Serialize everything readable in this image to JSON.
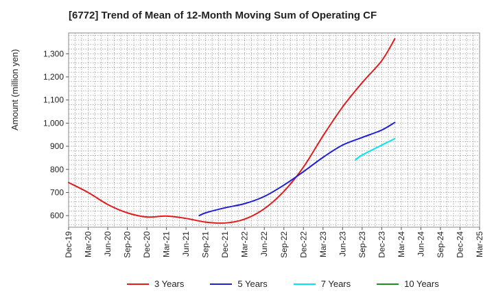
{
  "chart_data": {
    "type": "line",
    "title": "[6772]  Trend of Mean of 12-Month Moving Sum of Operating CF",
    "xlabel": "",
    "ylabel": "Amount (million yen)",
    "ylim": [
      550,
      1390
    ],
    "yticks": [
      600,
      700,
      800,
      900,
      1000,
      1100,
      1200,
      1300
    ],
    "ytick_labels": [
      "600",
      "700",
      "800",
      "900",
      "1,000",
      "1,100",
      "1,200",
      "1,300"
    ],
    "categories": [
      "Dec-19",
      "Mar-20",
      "Jun-20",
      "Sep-20",
      "Dec-20",
      "Mar-21",
      "Jun-21",
      "Sep-21",
      "Dec-21",
      "Mar-22",
      "Jun-22",
      "Sep-22",
      "Dec-22",
      "Mar-23",
      "Jun-23",
      "Sep-23",
      "Dec-23",
      "Mar-24",
      "Jun-24",
      "Sep-24",
      "Dec-24",
      "Mar-25"
    ],
    "grid": true,
    "legend_position": "bottom",
    "series": [
      {
        "name": "3 Years",
        "color": "#e31a1c",
        "points": [
          [
            0,
            743
          ],
          [
            1,
            700
          ],
          [
            2,
            648
          ],
          [
            3,
            612
          ],
          [
            4,
            594
          ],
          [
            5,
            598
          ],
          [
            6,
            588
          ],
          [
            7,
            572
          ],
          [
            8,
            568
          ],
          [
            9,
            585
          ],
          [
            10,
            630
          ],
          [
            11,
            705
          ],
          [
            12,
            810
          ],
          [
            13,
            945
          ],
          [
            14,
            1070
          ],
          [
            15,
            1175
          ],
          [
            16,
            1270
          ],
          [
            16.67,
            1365
          ]
        ]
      },
      {
        "name": "5 Years",
        "color": "#1f1fd6",
        "points": [
          [
            6.67,
            600
          ],
          [
            7,
            612
          ],
          [
            8,
            634
          ],
          [
            9,
            652
          ],
          [
            10,
            683
          ],
          [
            11,
            732
          ],
          [
            12,
            790
          ],
          [
            13,
            852
          ],
          [
            14,
            905
          ],
          [
            15,
            938
          ],
          [
            16,
            970
          ],
          [
            16.67,
            1003
          ]
        ]
      },
      {
        "name": "7 Years",
        "color": "#00e5ee",
        "points": [
          [
            14.67,
            842
          ],
          [
            15,
            862
          ],
          [
            16,
            905
          ],
          [
            16.67,
            933
          ]
        ]
      },
      {
        "name": "10 Years",
        "color": "#228b22",
        "points": []
      }
    ]
  }
}
